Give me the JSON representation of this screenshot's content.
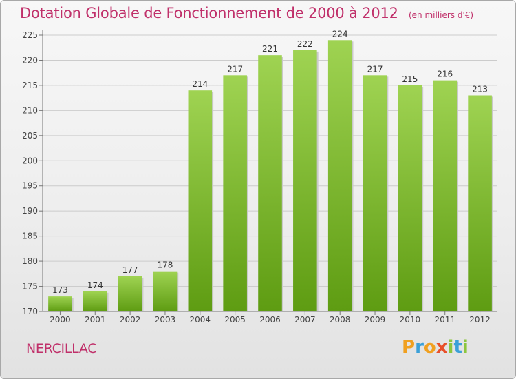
{
  "title": "Dotation Globale de Fonctionnement de 2000 à 2012",
  "subtitle": "(en milliers d'€)",
  "commune": "NERCILLAC",
  "logo": {
    "letters": [
      "P",
      "r",
      "o",
      "x",
      "i",
      "t",
      "i"
    ],
    "colors": [
      "#f0a020",
      "#3ba0d8",
      "#f0a020",
      "#e8502a",
      "#8cc63e",
      "#3ba0d8",
      "#8cc63e"
    ]
  },
  "colors": {
    "bar_top": "#9fd352",
    "bar_bottom": "#5e9c12",
    "title": "#c0306a",
    "grid": "#cccccc"
  },
  "chart_data": {
    "type": "bar",
    "categories": [
      "2000",
      "2001",
      "2002",
      "2003",
      "2004",
      "2005",
      "2006",
      "2007",
      "2008",
      "2009",
      "2010",
      "2011",
      "2012"
    ],
    "values": [
      173,
      174,
      177,
      178,
      214,
      217,
      221,
      222,
      224,
      217,
      215,
      216,
      213
    ],
    "yticks": [
      170,
      175,
      180,
      185,
      190,
      195,
      200,
      205,
      210,
      215,
      220,
      225
    ],
    "ylim": [
      170,
      225
    ],
    "grid": true,
    "data_labels": true
  }
}
